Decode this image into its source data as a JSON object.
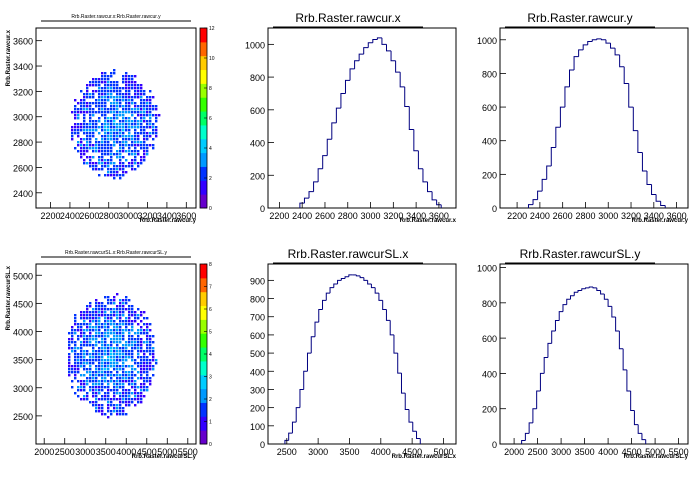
{
  "colors": {
    "hist_line": "#000080",
    "frame": "#000000",
    "palette": [
      "#6600cc",
      "#3300ff",
      "#0033ff",
      "#0099ff",
      "#00ccff",
      "#00ffcc",
      "#00ff66",
      "#33ff00",
      "#99ff00",
      "#ffff00",
      "#ffcc00",
      "#ff6600",
      "#ff0000"
    ]
  },
  "chart_data": [
    {
      "type": "heatmap",
      "title": "Rrb.Raster.rawcur.x:Rrb.Raster.rawcur.y",
      "xlabel": "Rrb.Raster.rawcur.y",
      "ylabel": "Rrb.Raster.rawcur.x",
      "xlim": [
        2050,
        3700
      ],
      "ylim": [
        2280,
        3700
      ],
      "x_ticks": [
        "2200",
        "2400",
        "2600",
        "2800",
        "3000",
        "3200",
        "3400",
        "3600"
      ],
      "y_ticks": [
        "2400",
        "2600",
        "2800",
        "3000",
        "3200",
        "3400",
        "3600"
      ],
      "z_ticks": [
        "0",
        "2",
        "4",
        "6",
        "8",
        "10",
        "12"
      ],
      "zlim": [
        0,
        12
      ],
      "center": [
        2850,
        2950
      ],
      "spread": [
        400,
        380
      ],
      "tilt": 20
    },
    {
      "type": "bar",
      "title": "Rrb.Raster.rawcur.x",
      "xlabel": "Rrb.Raster.rawcur.x",
      "xlim": [
        2100,
        3750
      ],
      "ylim": [
        0,
        1100
      ],
      "x_ticks": [
        "2200",
        "2400",
        "2600",
        "2800",
        "3000",
        "3200",
        "3400",
        "3600"
      ],
      "y_ticks": [
        "0",
        "200",
        "400",
        "600",
        "800",
        "1000"
      ],
      "bins": [
        [
          2400,
          30
        ],
        [
          2440,
          60
        ],
        [
          2480,
          100
        ],
        [
          2520,
          160
        ],
        [
          2560,
          240
        ],
        [
          2600,
          320
        ],
        [
          2640,
          420
        ],
        [
          2680,
          520
        ],
        [
          2720,
          610
        ],
        [
          2760,
          700
        ],
        [
          2800,
          780
        ],
        [
          2840,
          850
        ],
        [
          2880,
          900
        ],
        [
          2920,
          940
        ],
        [
          2960,
          980
        ],
        [
          3000,
          1010
        ],
        [
          3040,
          1030
        ],
        [
          3080,
          1040
        ],
        [
          3120,
          1000
        ],
        [
          3160,
          960
        ],
        [
          3200,
          900
        ],
        [
          3240,
          830
        ],
        [
          3280,
          740
        ],
        [
          3320,
          620
        ],
        [
          3360,
          480
        ],
        [
          3400,
          350
        ],
        [
          3440,
          240
        ],
        [
          3480,
          160
        ],
        [
          3520,
          100
        ],
        [
          3560,
          50
        ],
        [
          3600,
          20
        ]
      ]
    },
    {
      "type": "bar",
      "title": "Rrb.Raster.rawcur.y",
      "xlabel": "Rrb.Raster.rawcur.y",
      "xlim": [
        2050,
        3700
      ],
      "ylim": [
        0,
        1070
      ],
      "x_ticks": [
        "2200",
        "2400",
        "2600",
        "2800",
        "3000",
        "3200",
        "3400",
        "3600"
      ],
      "y_ticks": [
        "0",
        "200",
        "400",
        "600",
        "800",
        "1000"
      ],
      "bins": [
        [
          2320,
          20
        ],
        [
          2360,
          50
        ],
        [
          2400,
          100
        ],
        [
          2440,
          170
        ],
        [
          2480,
          250
        ],
        [
          2520,
          360
        ],
        [
          2560,
          480
        ],
        [
          2600,
          600
        ],
        [
          2640,
          720
        ],
        [
          2680,
          820
        ],
        [
          2720,
          900
        ],
        [
          2760,
          940
        ],
        [
          2800,
          970
        ],
        [
          2840,
          990
        ],
        [
          2880,
          1000
        ],
        [
          2920,
          1005
        ],
        [
          2960,
          1000
        ],
        [
          3000,
          980
        ],
        [
          3040,
          950
        ],
        [
          3080,
          910
        ],
        [
          3120,
          840
        ],
        [
          3160,
          740
        ],
        [
          3200,
          600
        ],
        [
          3240,
          460
        ],
        [
          3280,
          330
        ],
        [
          3320,
          220
        ],
        [
          3360,
          140
        ],
        [
          3400,
          80
        ],
        [
          3440,
          40
        ],
        [
          3480,
          15
        ]
      ]
    },
    {
      "type": "heatmap",
      "title": "Rrb.Raster.rawcurSL.x:Rrb.Raster.rawcurSL.y",
      "xlabel": "Rrb.Raster.rawcurSL.y",
      "ylabel": "Rrb.Raster.rawcurSL.x",
      "xlim": [
        1800,
        5700
      ],
      "ylim": [
        2000,
        5200
      ],
      "x_ticks": [
        "2000",
        "2500",
        "3000",
        "3500",
        "4000",
        "4500",
        "5000",
        "5500"
      ],
      "y_ticks": [
        "2500",
        "3000",
        "3500",
        "4000",
        "4500",
        "5000"
      ],
      "z_ticks": [
        "0",
        "1",
        "2",
        "3",
        "4",
        "5",
        "6",
        "7",
        "8"
      ],
      "zlim": [
        0,
        8
      ],
      "center": [
        3600,
        3600
      ],
      "spread": [
        1000,
        950
      ],
      "tilt": -15
    },
    {
      "type": "bar",
      "title": "Rrb.Raster.rawcurSL.x",
      "xlabel": "Rrb.Raster.rawcurSL.x",
      "xlim": [
        2200,
        5200
      ],
      "ylim": [
        0,
        990
      ],
      "x_ticks": [
        "2500",
        "3000",
        "3500",
        "4000",
        "4500",
        "5000"
      ],
      "y_ticks": [
        "0",
        "100",
        "200",
        "300",
        "400",
        "500",
        "600",
        "700",
        "800",
        "900"
      ],
      "bins": [
        [
          2500,
          20
        ],
        [
          2560,
          60
        ],
        [
          2620,
          120
        ],
        [
          2680,
          200
        ],
        [
          2740,
          300
        ],
        [
          2800,
          400
        ],
        [
          2860,
          500
        ],
        [
          2920,
          590
        ],
        [
          2980,
          670
        ],
        [
          3040,
          740
        ],
        [
          3100,
          790
        ],
        [
          3160,
          830
        ],
        [
          3220,
          860
        ],
        [
          3280,
          880
        ],
        [
          3340,
          900
        ],
        [
          3400,
          910
        ],
        [
          3460,
          920
        ],
        [
          3520,
          930
        ],
        [
          3580,
          930
        ],
        [
          3640,
          925
        ],
        [
          3700,
          915
        ],
        [
          3760,
          900
        ],
        [
          3820,
          880
        ],
        [
          3880,
          860
        ],
        [
          3940,
          830
        ],
        [
          4000,
          790
        ],
        [
          4060,
          740
        ],
        [
          4120,
          680
        ],
        [
          4180,
          600
        ],
        [
          4240,
          500
        ],
        [
          4300,
          390
        ],
        [
          4360,
          280
        ],
        [
          4420,
          190
        ],
        [
          4480,
          120
        ],
        [
          4540,
          70
        ],
        [
          4600,
          30
        ]
      ]
    },
    {
      "type": "bar",
      "title": "Rrb.Raster.rawcurSL.y",
      "xlabel": "Rrb.Raster.rawcurSL.y",
      "xlim": [
        1700,
        5700
      ],
      "ylim": [
        0,
        1020
      ],
      "x_ticks": [
        "2000",
        "2500",
        "3000",
        "3500",
        "4000",
        "4500",
        "5000",
        "5500"
      ],
      "y_ticks": [
        "0",
        "200",
        "400",
        "600",
        "800",
        "1000"
      ],
      "bins": [
        [
          2200,
          20
        ],
        [
          2280,
          60
        ],
        [
          2360,
          120
        ],
        [
          2440,
          200
        ],
        [
          2520,
          300
        ],
        [
          2600,
          400
        ],
        [
          2680,
          490
        ],
        [
          2760,
          570
        ],
        [
          2840,
          640
        ],
        [
          2920,
          700
        ],
        [
          3000,
          750
        ],
        [
          3080,
          790
        ],
        [
          3160,
          820
        ],
        [
          3240,
          840
        ],
        [
          3320,
          860
        ],
        [
          3400,
          870
        ],
        [
          3480,
          880
        ],
        [
          3560,
          885
        ],
        [
          3640,
          890
        ],
        [
          3720,
          885
        ],
        [
          3800,
          870
        ],
        [
          3880,
          850
        ],
        [
          3960,
          820
        ],
        [
          4040,
          780
        ],
        [
          4120,
          720
        ],
        [
          4200,
          640
        ],
        [
          4280,
          540
        ],
        [
          4360,
          420
        ],
        [
          4440,
          300
        ],
        [
          4520,
          190
        ],
        [
          4600,
          110
        ],
        [
          4680,
          60
        ],
        [
          4760,
          25
        ]
      ]
    }
  ]
}
